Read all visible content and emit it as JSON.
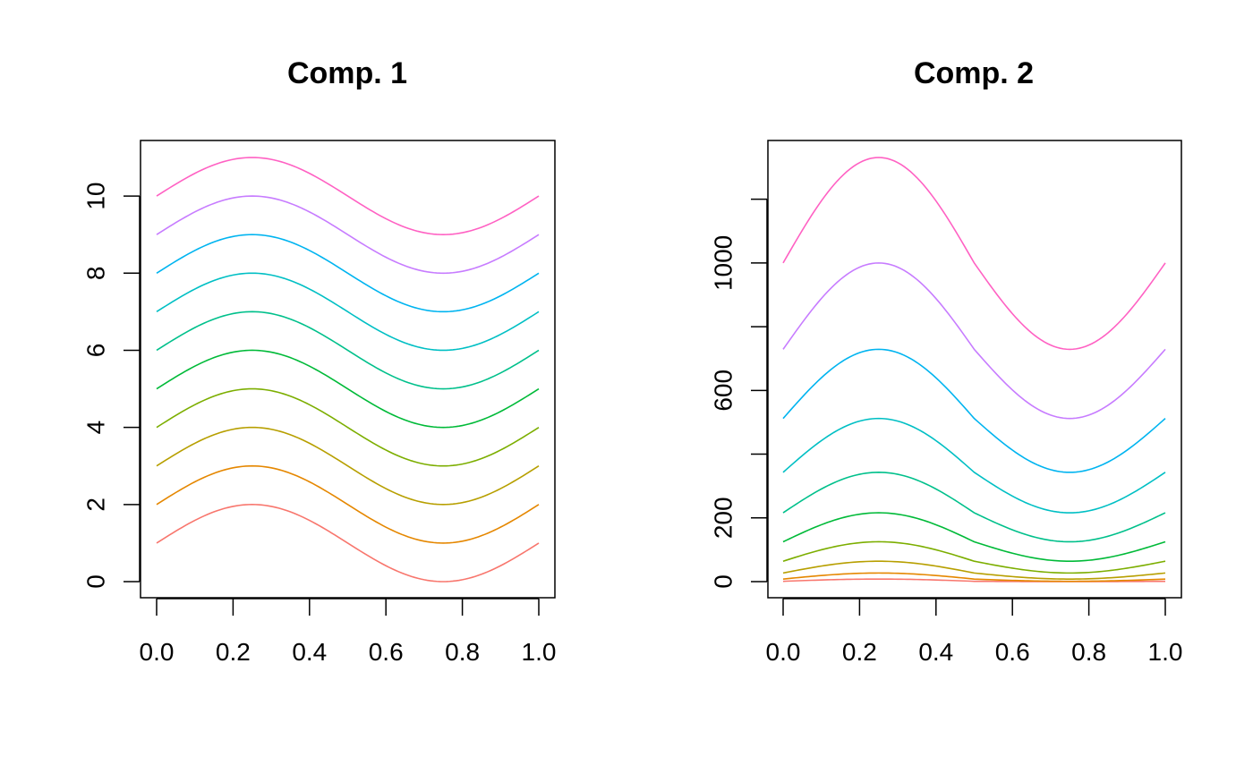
{
  "chart_data": [
    {
      "type": "line",
      "title": "Comp. 1",
      "xlabel": "",
      "ylabel": "",
      "xlim": [
        0,
        1
      ],
      "ylim": [
        0,
        11
      ],
      "xticks": [
        0.0,
        0.2,
        0.4,
        0.6,
        0.8,
        1.0
      ],
      "xtick_labels": [
        "0.0",
        "0.2",
        "0.4",
        "0.6",
        "0.8",
        "1.0"
      ],
      "yticks": [
        0,
        2,
        4,
        6,
        8,
        10
      ],
      "ytick_labels": [
        "0",
        "2",
        "4",
        "6",
        "8",
        "10"
      ],
      "x": [
        0.0,
        0.25,
        0.5,
        0.75,
        1.0
      ],
      "series": [
        {
          "color": "#F8766D",
          "values": [
            1,
            2,
            1,
            0,
            1
          ]
        },
        {
          "color": "#E58700",
          "values": [
            2,
            3,
            2,
            1,
            2
          ]
        },
        {
          "color": "#B79F00",
          "values": [
            3,
            4,
            3,
            2,
            3
          ]
        },
        {
          "color": "#7CAE00",
          "values": [
            4,
            5,
            4,
            3,
            4
          ]
        },
        {
          "color": "#00BA38",
          "values": [
            5,
            6,
            5,
            4,
            5
          ]
        },
        {
          "color": "#00C08B",
          "values": [
            6,
            7,
            6,
            5,
            6
          ]
        },
        {
          "color": "#00BFC4",
          "values": [
            7,
            8,
            7,
            6,
            7
          ]
        },
        {
          "color": "#00B4F0",
          "values": [
            8,
            9,
            8,
            7,
            8
          ]
        },
        {
          "color": "#C77CFF",
          "values": [
            9,
            10,
            9,
            8,
            9
          ]
        },
        {
          "color": "#FF61C3",
          "values": [
            10,
            11,
            10,
            9,
            10
          ]
        }
      ],
      "grid": false,
      "legend": "none"
    },
    {
      "type": "line",
      "title": "Comp. 2",
      "xlabel": "",
      "ylabel": "",
      "xlim": [
        0,
        1
      ],
      "ylim": [
        0,
        1331
      ],
      "xticks": [
        0.0,
        0.2,
        0.4,
        0.6,
        0.8,
        1.0
      ],
      "xtick_labels": [
        "0.0",
        "0.2",
        "0.4",
        "0.6",
        "0.8",
        "1.0"
      ],
      "yticks": [
        0,
        200,
        400,
        600,
        800,
        1000,
        1200
      ],
      "ytick_labels": [
        "0",
        "200",
        "",
        "600",
        "",
        "1000",
        ""
      ],
      "x": [
        0.0,
        0.25,
        0.5,
        0.75,
        1.0
      ],
      "series": [
        {
          "color": "#F8766D",
          "values": [
            1,
            8,
            1,
            0,
            1
          ]
        },
        {
          "color": "#E58700",
          "values": [
            8,
            27,
            8,
            1,
            8
          ]
        },
        {
          "color": "#B79F00",
          "values": [
            27,
            64,
            27,
            8,
            27
          ]
        },
        {
          "color": "#7CAE00",
          "values": [
            64,
            125,
            64,
            27,
            64
          ]
        },
        {
          "color": "#00BA38",
          "values": [
            125,
            216,
            125,
            64,
            125
          ]
        },
        {
          "color": "#00C08B",
          "values": [
            216,
            343,
            216,
            125,
            216
          ]
        },
        {
          "color": "#00BFC4",
          "values": [
            343,
            512,
            343,
            216,
            343
          ]
        },
        {
          "color": "#00B4F0",
          "values": [
            512,
            729,
            512,
            343,
            512
          ]
        },
        {
          "color": "#C77CFF",
          "values": [
            729,
            1000,
            729,
            512,
            729
          ]
        },
        {
          "color": "#FF61C3",
          "values": [
            1000,
            1331,
            1000,
            729,
            1000
          ]
        }
      ],
      "grid": false,
      "legend": "none"
    }
  ]
}
